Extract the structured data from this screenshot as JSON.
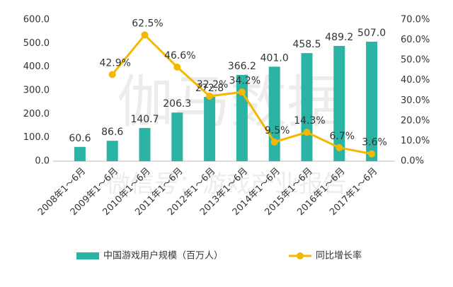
{
  "chart_data": {
    "type": "bar_line",
    "categories": [
      "2008年1～6月",
      "2009年1～6月",
      "2010年1～6月",
      "2011年1～6月",
      "2012年1～6月",
      "2013年1～6月",
      "2014年1～6月",
      "2015年1～6月",
      "2016年1～6月",
      "2017年1～6月"
    ],
    "series": [
      {
        "name": "中国游戏用户规模（百万人）",
        "color": "#2bb3a3",
        "type": "bar",
        "values": [
          60.6,
          86.6,
          140.7,
          206.3,
          272.8,
          366.2,
          401.0,
          458.5,
          489.2,
          507.0
        ],
        "value_labels": [
          "60.6",
          "86.6",
          "140.7",
          "206.3",
          "272.8",
          "366.2",
          "401.0",
          "458.5",
          "489.2",
          "507.0"
        ]
      },
      {
        "name": "同比增长率",
        "color": "#f5b800",
        "type": "line",
        "axis": "y2",
        "values": [
          null,
          42.9,
          62.5,
          46.6,
          32.2,
          34.2,
          9.5,
          14.3,
          6.7,
          3.6
        ],
        "value_labels": [
          null,
          "42.9%",
          "62.5%",
          "46.6%",
          "32.2%",
          "34.2%",
          "9.5%",
          "14.3%",
          "6.7%",
          "3.6%"
        ]
      }
    ],
    "ylim": [
      0,
      600
    ],
    "yticks": [
      {
        "value": 0,
        "label": "0.0"
      },
      {
        "value": 100,
        "label": "100.0"
      },
      {
        "value": 200,
        "label": "200.0"
      },
      {
        "value": 300,
        "label": "300.0"
      },
      {
        "value": 400,
        "label": "400.0"
      },
      {
        "value": 500,
        "label": "500.0"
      },
      {
        "value": 600,
        "label": "600.0"
      }
    ],
    "y2lim": [
      0,
      70
    ],
    "y2ticks": [
      {
        "value": 0,
        "label": "0.0%"
      },
      {
        "value": 10,
        "label": "10.0%"
      },
      {
        "value": 20,
        "label": "20.0%"
      },
      {
        "value": 30,
        "label": "30.0%"
      },
      {
        "value": 40,
        "label": "40.0%"
      },
      {
        "value": 50,
        "label": "50.0%"
      },
      {
        "value": 60,
        "label": "60.0%"
      },
      {
        "value": 70,
        "label": "70.0%"
      }
    ],
    "watermark": "伽马数据",
    "watermark_sub": "微信号：游戏产业报告"
  }
}
